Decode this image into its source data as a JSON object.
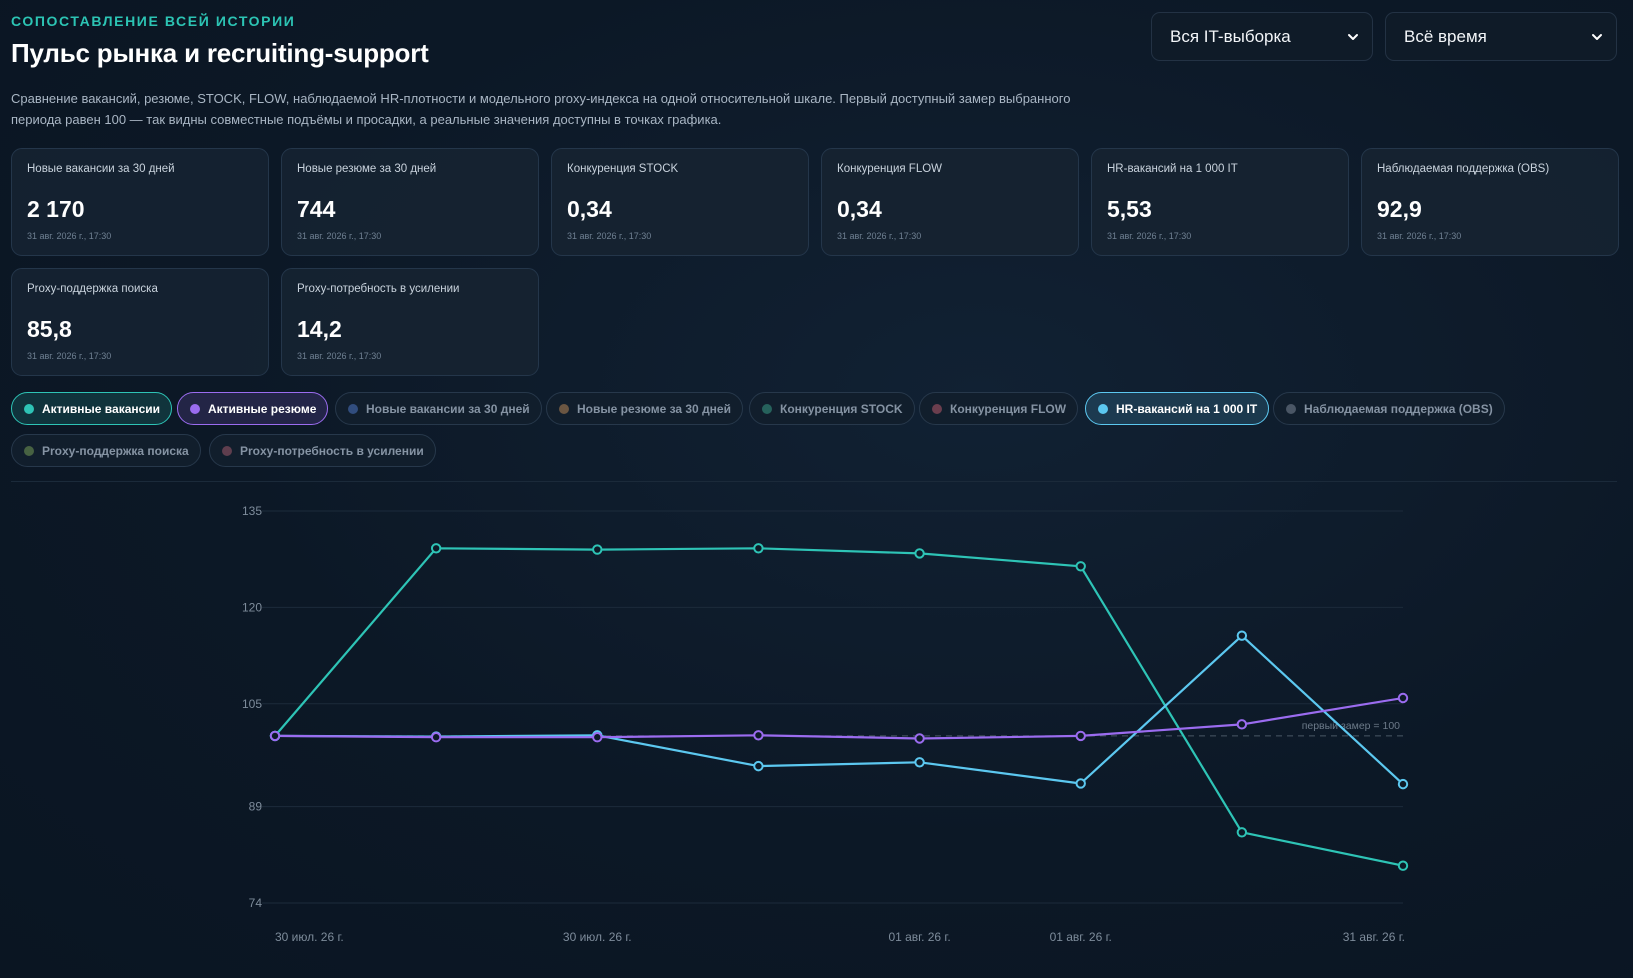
{
  "header": {
    "eyebrow": "СОПОСТАВЛЕНИЕ ВСЕЙ ИСТОРИИ",
    "title": "Пульс рынка и recruiting-support",
    "description": "Сравнение вакансий, резюме, STOCK, FLOW, наблюдаемой HR-плотности и модельного proxy-индекса на одной относительной шкале. Первый доступный замер выбранного периода равен 100 — так видны совместные подъёмы и просадки, а реальные значения доступны в точках графика."
  },
  "filters": {
    "sample": "Вся IT-выборка",
    "period": "Всё время"
  },
  "cards": [
    {
      "label": "Новые вакансии за 30 дней",
      "value": "2 170",
      "ts": "31 авг. 2026 г., 17:30"
    },
    {
      "label": "Новые резюме за 30 дней",
      "value": "744",
      "ts": "31 авг. 2026 г., 17:30"
    },
    {
      "label": "Конкуренция STOCK",
      "value": "0,34",
      "ts": "31 авг. 2026 г., 17:30"
    },
    {
      "label": "Конкуренция FLOW",
      "value": "0,34",
      "ts": "31 авг. 2026 г., 17:30"
    },
    {
      "label": "HR-вакансий на 1 000 IT",
      "value": "5,53",
      "ts": "31 авг. 2026 г., 17:30"
    },
    {
      "label": "Наблюдаемая поддержка (OBS)",
      "value": "92,9",
      "ts": "31 авг. 2026 г., 17:30"
    },
    {
      "label": "Proxy-поддержка поиска",
      "value": "85,8",
      "ts": "31 авг. 2026 г., 17:30"
    },
    {
      "label": "Proxy-потребность в усилении",
      "value": "14,2",
      "ts": "31 авг. 2026 г., 17:30"
    }
  ],
  "chips": [
    {
      "label": "Активные вакансии",
      "color": "#2ec4b6",
      "active": true
    },
    {
      "label": "Активные резюме",
      "color": "#9b6cf0",
      "active": true
    },
    {
      "label": "Новые вакансии за 30 дней",
      "color": "#3c5e9a",
      "active": false
    },
    {
      "label": "Новые резюме за 30 дней",
      "color": "#8a6a4a",
      "active": false
    },
    {
      "label": "Конкуренция STOCK",
      "color": "#2e7a6c",
      "active": false
    },
    {
      "label": "Конкуренция FLOW",
      "color": "#8a4a5a",
      "active": false
    },
    {
      "label": "HR-вакансий на 1 000 IT",
      "color": "#5cc8f0",
      "active": true
    },
    {
      "label": "Наблюдаемая поддержка (OBS)",
      "color": "#5d6a78",
      "active": false
    },
    {
      "label": "Proxy-поддержка поиска",
      "color": "#5a7a4a",
      "active": false
    },
    {
      "label": "Proxy-потребность в усилении",
      "color": "#7a4a5a",
      "active": false
    }
  ],
  "chart_data": {
    "type": "line",
    "ylim": [
      74,
      135
    ],
    "yticks": [
      74,
      89,
      105,
      120,
      135
    ],
    "xtick_labels": [
      {
        "index": 0,
        "label": "30 июл. 26 г."
      },
      {
        "index": 2,
        "label": "30 июл. 26 г."
      },
      {
        "index": 4,
        "label": "01 авг. 26 г."
      },
      {
        "index": 5,
        "label": "01 авг. 26 г."
      },
      {
        "index": 7,
        "label": "31 авг. 26 г."
      }
    ],
    "point_count": 8,
    "baseline": {
      "value": 100,
      "label": "первый замер = 100"
    },
    "series": [
      {
        "name": "Активные вакансии",
        "color": "#2ec4b6",
        "values": [
          100,
          129.2,
          129.0,
          129.2,
          128.4,
          126.4,
          85.0,
          79.8
        ]
      },
      {
        "name": "Активные резюме",
        "color": "#9b6cf0",
        "values": [
          100,
          99.8,
          99.8,
          100.1,
          99.6,
          100.0,
          101.8,
          105.9
        ]
      },
      {
        "name": "HR-вакансий на 1 000 IT",
        "color": "#5cc8f0",
        "values": [
          100,
          99.9,
          100.1,
          95.3,
          95.9,
          92.6,
          115.6,
          92.5
        ]
      }
    ]
  }
}
